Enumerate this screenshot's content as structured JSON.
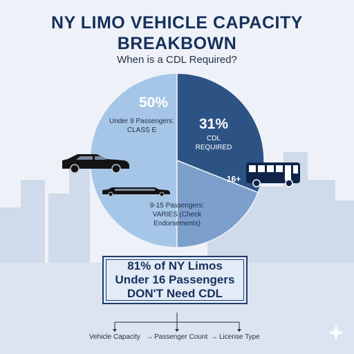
{
  "header": {
    "title_line1": "NY LIMO VEHICLE CAPACITY",
    "title_line2": "BREAKBOWN",
    "subtitle": "When is a CDL Required?"
  },
  "chart_data": {
    "type": "pie",
    "slices": [
      {
        "value": 50,
        "label": "50%",
        "desc": [
          "Under 9 Passengers:",
          "CLASS E"
        ],
        "color": "#a6c6e7",
        "icon": "sedan-icon"
      },
      {
        "value": 31,
        "label": "31%",
        "desc": [
          "CDL",
          "REQUIRED"
        ],
        "extra": "16+",
        "color": "#2d5384",
        "icon": "bus-icon"
      },
      {
        "value": 19,
        "label": "",
        "desc": [
          "9-15 Passengers:",
          "VARIES (Check",
          "Endorsements)"
        ],
        "color": "#7c9fcb",
        "icon": "stretch-limo-icon"
      }
    ]
  },
  "callout": {
    "line1": "81% of NY Limos",
    "line2": "Under 16 Passengers",
    "line3": "DON'T Need CDL"
  },
  "flow": {
    "steps": [
      "Vehicle Capacity",
      "Passenger Count",
      "License Type"
    ],
    "arrow": "→"
  },
  "colors": {
    "title": "#16305c",
    "skyline": "#c9d6e8",
    "accent_dark": "#2d5384"
  }
}
